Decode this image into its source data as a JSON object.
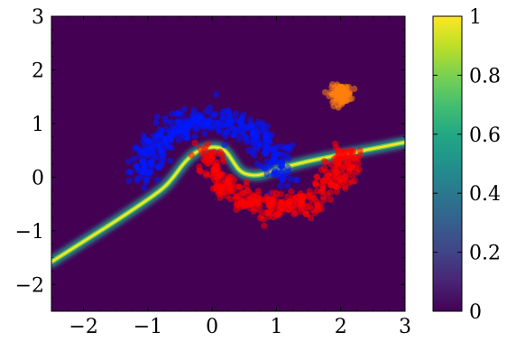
{
  "chart_data": {
    "type": "scatter",
    "title": "",
    "xlabel": "",
    "ylabel": "",
    "xlim": [
      -2.5,
      3.0
    ],
    "ylim": [
      -2.5,
      3.0
    ],
    "x_ticks": [
      {
        "value": -2,
        "label": "−2"
      },
      {
        "value": -1,
        "label": "−1"
      },
      {
        "value": 0,
        "label": "0"
      },
      {
        "value": 1,
        "label": "1"
      },
      {
        "value": 2,
        "label": "2"
      },
      {
        "value": 3,
        "label": "3"
      }
    ],
    "y_ticks": [
      {
        "value": -2,
        "label": "−2"
      },
      {
        "value": -1,
        "label": "−1"
      },
      {
        "value": 0,
        "label": "0"
      },
      {
        "value": 1,
        "label": "1"
      },
      {
        "value": 2,
        "label": "2"
      },
      {
        "value": 3,
        "label": "3"
      }
    ],
    "grid": false,
    "background_heatmap": {
      "colormap": "viridis",
      "range": [
        0,
        1
      ],
      "decision_boundary": [
        [
          -2.5,
          -1.58
        ],
        [
          -2.0,
          -1.2
        ],
        [
          -1.5,
          -0.82
        ],
        [
          -1.0,
          -0.42
        ],
        [
          -0.75,
          -0.2
        ],
        [
          -0.6,
          0.0
        ],
        [
          -0.45,
          0.25
        ],
        [
          -0.3,
          0.43
        ],
        [
          -0.15,
          0.53
        ],
        [
          0.0,
          0.56
        ],
        [
          0.12,
          0.55
        ],
        [
          0.22,
          0.48
        ],
        [
          0.32,
          0.3
        ],
        [
          0.42,
          0.12
        ],
        [
          0.55,
          0.04
        ],
        [
          0.75,
          0.03
        ],
        [
          1.0,
          0.15
        ],
        [
          1.5,
          0.3
        ],
        [
          2.0,
          0.42
        ],
        [
          2.5,
          0.53
        ],
        [
          3.0,
          0.65
        ]
      ]
    },
    "colorbar": {
      "min": 0,
      "max": 1,
      "ticks": [
        {
          "value": 0,
          "label": "0"
        },
        {
          "value": 0.2,
          "label": "0.2"
        },
        {
          "value": 0.4,
          "label": "0.4"
        },
        {
          "value": 0.6,
          "label": "0.6"
        },
        {
          "value": 0.8,
          "label": "0.8"
        },
        {
          "value": 1,
          "label": "1"
        }
      ],
      "position": "right"
    },
    "series": [
      {
        "shape": "upper-moon",
        "color": "#0019ff",
        "center": [
          0.0,
          0.0
        ],
        "radius": 1.05,
        "angle_range_deg": [
          0,
          180
        ],
        "noise": 0.13,
        "count": 380
      },
      {
        "shape": "lower-moon",
        "color": "#ff0000",
        "center": [
          1.0,
          0.5
        ],
        "radius": 1.05,
        "angle_range_deg": [
          180,
          360
        ],
        "noise": 0.13,
        "count": 380
      },
      {
        "shape": "cluster",
        "color": "#ff7f0e",
        "center": [
          2.0,
          1.55
        ],
        "spread": 0.08,
        "count": 110
      }
    ]
  }
}
